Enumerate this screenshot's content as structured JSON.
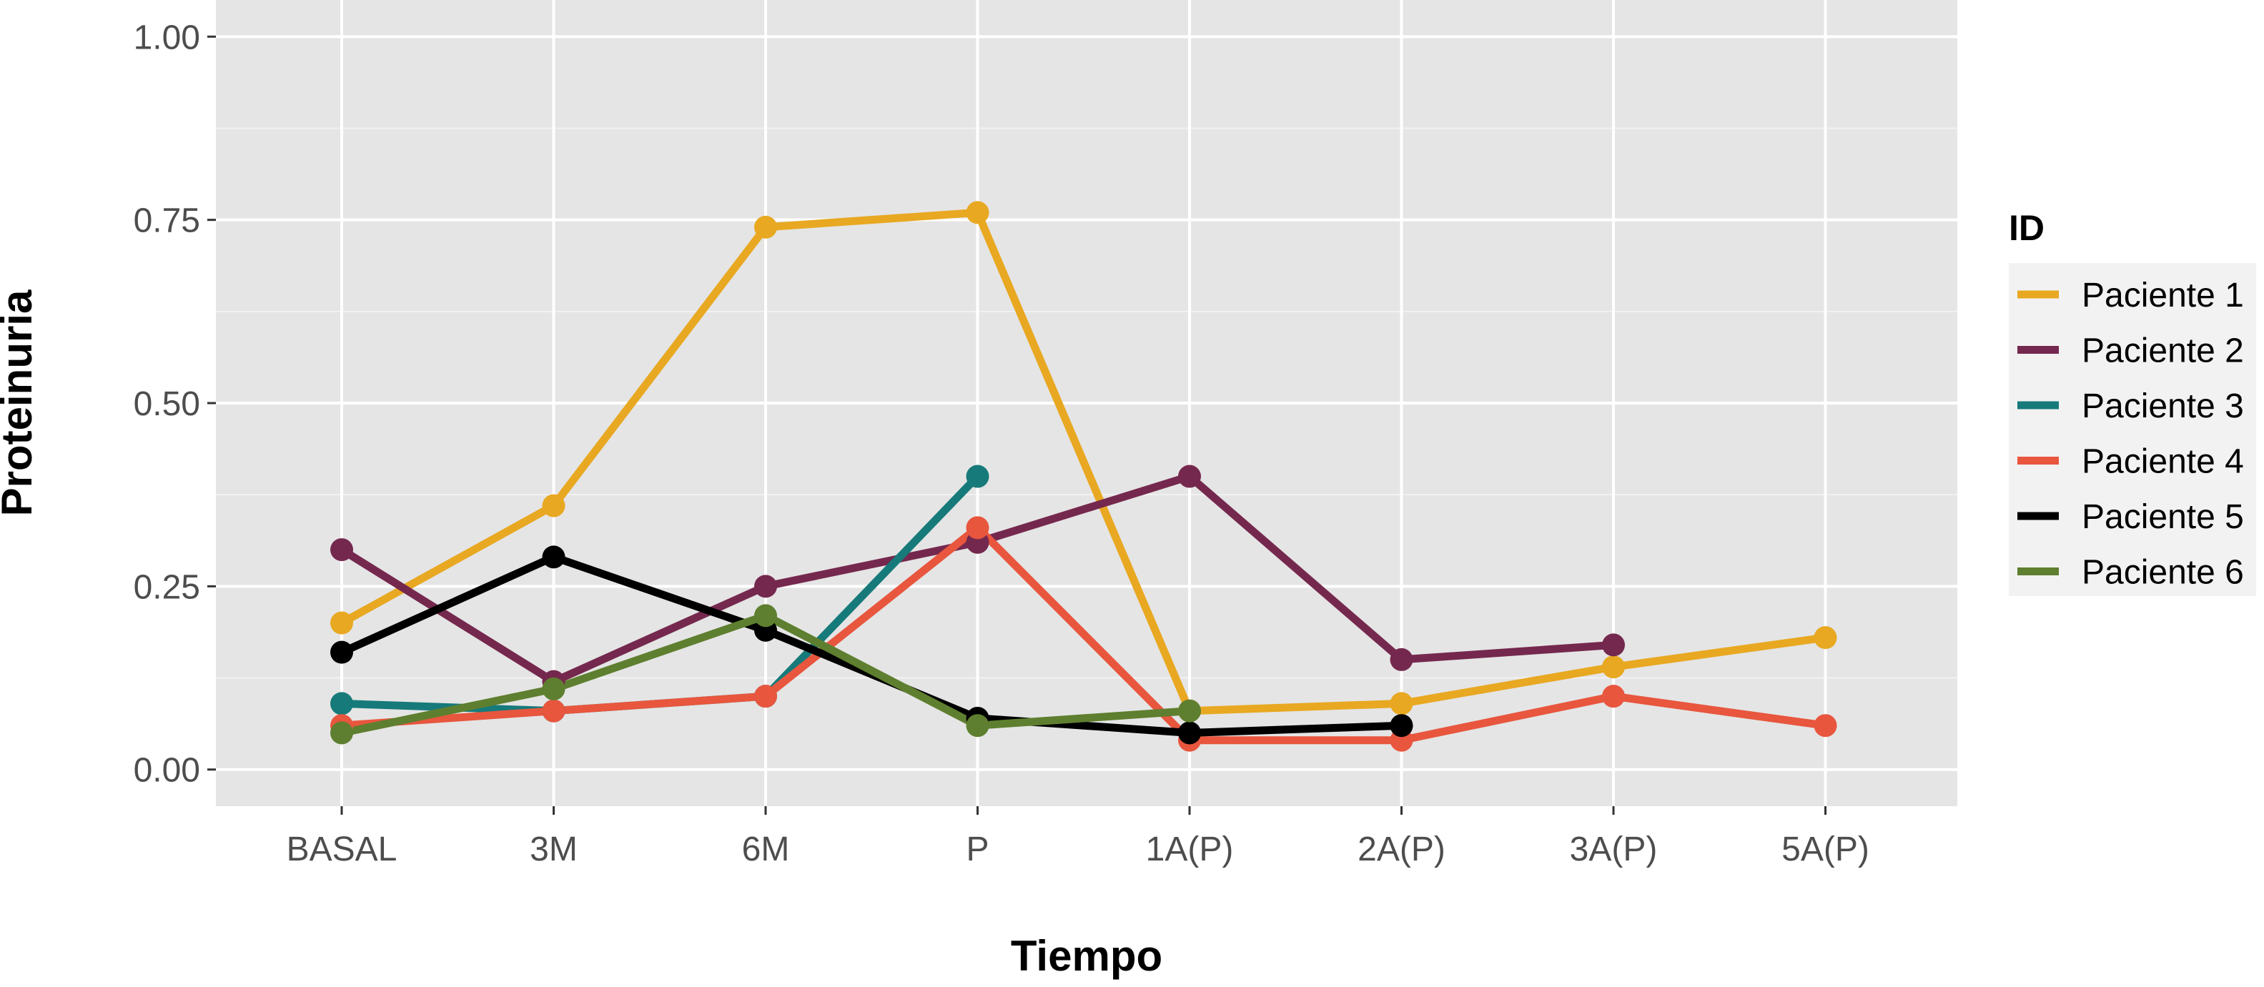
{
  "chart_data": {
    "type": "line",
    "xlabel": "Tiempo",
    "ylabel": "Proteinuria",
    "categories": [
      "BASAL",
      "3M",
      "6M",
      "P",
      "1A(P)",
      "2A(P)",
      "3A(P)",
      "5A(P)"
    ],
    "ylim": [
      -0.05,
      1.05
    ],
    "y_ticks": [
      0.0,
      0.25,
      0.5,
      0.75,
      1.0
    ],
    "y_tick_labels": [
      "0.00",
      "0.25",
      "0.50",
      "0.75",
      "1.00"
    ],
    "grid": true,
    "legend_title": "ID",
    "legend_position": "right",
    "panel_color": "#e5e5e5",
    "series": [
      {
        "name": "Paciente 1",
        "color": "#e8a821",
        "values": [
          0.2,
          0.36,
          0.74,
          0.76,
          0.08,
          0.09,
          0.14,
          0.18
        ]
      },
      {
        "name": "Paciente 2",
        "color": "#75284e",
        "values": [
          0.3,
          0.12,
          0.25,
          0.31,
          0.4,
          0.15,
          0.17,
          null
        ]
      },
      {
        "name": "Paciente 3",
        "color": "#177a7a",
        "values": [
          0.09,
          0.08,
          0.1,
          0.4,
          null,
          null,
          null,
          null
        ]
      },
      {
        "name": "Paciente 4",
        "color": "#e8563e",
        "values": [
          0.06,
          0.08,
          0.1,
          0.33,
          0.04,
          0.04,
          0.1,
          0.06
        ]
      },
      {
        "name": "Paciente 5",
        "color": "#000000",
        "values": [
          0.16,
          0.29,
          0.19,
          0.07,
          0.05,
          0.06,
          null,
          null
        ]
      },
      {
        "name": "Paciente 6",
        "color": "#5e7f2f",
        "values": [
          0.05,
          0.11,
          0.21,
          0.06,
          0.08,
          null,
          null,
          null
        ]
      }
    ]
  }
}
